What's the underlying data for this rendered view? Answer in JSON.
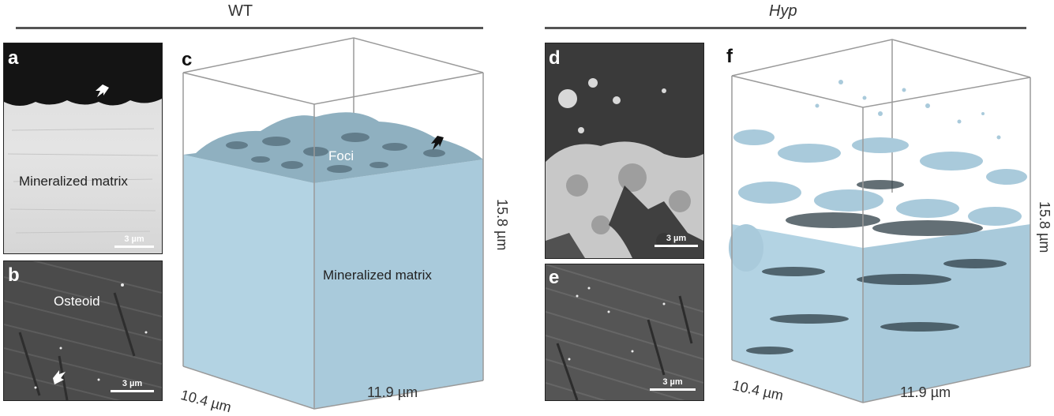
{
  "groups": {
    "wt": {
      "title": "WT"
    },
    "hyp": {
      "title": "Hyp"
    }
  },
  "panels": {
    "a": {
      "letter": "a",
      "label": "Mineralized matrix",
      "scale_bar": "3 µm"
    },
    "b": {
      "letter": "b",
      "label": "Osteoid",
      "scale_bar": "3 µm"
    },
    "c": {
      "letter": "c",
      "label_top": "Foci",
      "label_bottom": "Mineralized matrix",
      "dim_x": "10.4 µm",
      "dim_y": "11.9 µm",
      "dim_z": "15.8 µm"
    },
    "d": {
      "letter": "d",
      "scale_bar": "3 µm"
    },
    "e": {
      "letter": "e",
      "scale_bar": "3 µm"
    },
    "f": {
      "letter": "f",
      "dim_x": "10.4 µm",
      "dim_y": "11.9 µm",
      "dim_z": "15.8 µm"
    }
  },
  "colors": {
    "mineral_blue": "#b3d3e3",
    "mineral_edge": "#8fb6c9",
    "box_line": "#999999"
  }
}
